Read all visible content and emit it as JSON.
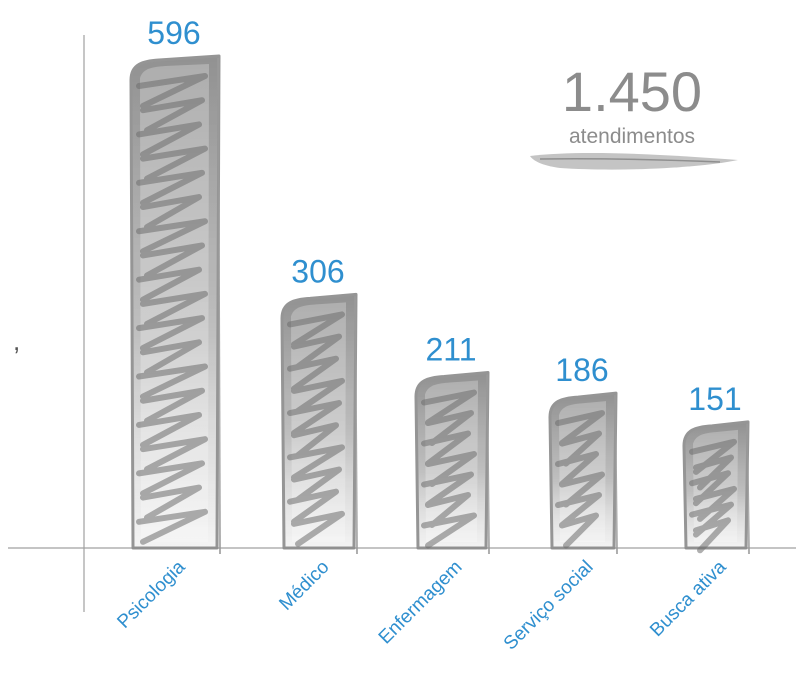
{
  "chart_data": {
    "type": "bar",
    "categories": [
      "Psicologia",
      "Médico",
      "Enfermagem",
      "Serviço social",
      "Busca ativa"
    ],
    "values": [
      596,
      306,
      211,
      186,
      151
    ],
    "title": "",
    "xlabel": "",
    "ylabel": "",
    "ylim": [
      0,
      600
    ],
    "grid": false,
    "legend": "none"
  },
  "total": {
    "value": "1.450",
    "label": "atendimentos"
  },
  "stray_mark": ",",
  "colors": {
    "label": "#2f8fcf",
    "bar_outline": "#8a8a8a",
    "bar_fill": "#9b9b9b",
    "axis": "#a0a0a0"
  }
}
